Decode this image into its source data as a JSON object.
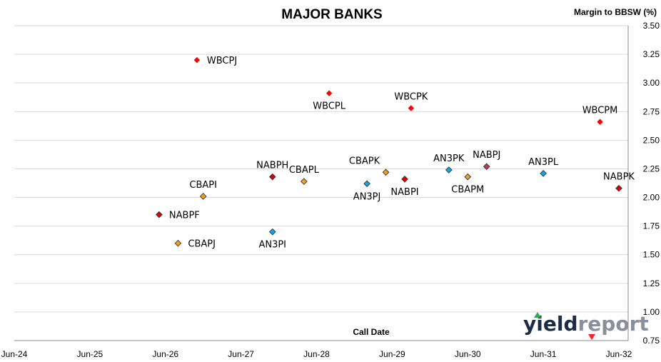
{
  "chart_data": {
    "type": "scatter",
    "title": "MAJOR BANKS",
    "ylabel": "Margin to BBSW (%)",
    "xlabel": "Call Date",
    "ylim": [
      0.75,
      3.5
    ],
    "yticks": [
      "3.50",
      "3.25",
      "3.00",
      "2.75",
      "2.50",
      "2.25",
      "2.00",
      "1.75",
      "1.50",
      "1.25",
      "1.00",
      "0.75"
    ],
    "xticks": [
      "Jun-24",
      "Jun-25",
      "Jun-26",
      "Jun-27",
      "Jun-28",
      "Jun-29",
      "Jun-30",
      "Jun-31",
      "Jun-32"
    ],
    "grid": "horizontal",
    "y_axis_side": "right",
    "points": [
      {
        "label": "WBCPJ",
        "x": "Nov-26",
        "y": 3.2,
        "color": "#ff0000",
        "label_pos": "right"
      },
      {
        "label": "WBCPL",
        "x": "Aug-28",
        "y": 2.91,
        "color": "#ff0000",
        "label_pos": "below"
      },
      {
        "label": "WBCPK",
        "x": "Sep-29",
        "y": 2.78,
        "color": "#ff0000",
        "label_pos": "above"
      },
      {
        "label": "WBCPM",
        "x": "Mar-32",
        "y": 2.66,
        "color": "#ff0000",
        "label_pos": "above"
      },
      {
        "label": "NABPH",
        "x": "Nov-27",
        "y": 2.18,
        "color": "#e00000",
        "label_pos": "above"
      },
      {
        "label": "CBAPL",
        "x": "Apr-28",
        "y": 2.14,
        "color": "#f0a020",
        "label_pos": "above"
      },
      {
        "label": "CBAPI",
        "x": "Dec-26",
        "y": 2.01,
        "color": "#f0a020",
        "label_pos": "above"
      },
      {
        "label": "CBAPK",
        "x": "May-29",
        "y": 2.22,
        "color": "#f0a020",
        "label_pos": "above-left"
      },
      {
        "label": "AN3PJ",
        "x": "Feb-29",
        "y": 2.12,
        "color": "#13a6e8",
        "label_pos": "below"
      },
      {
        "label": "NABPI",
        "x": "Aug-29",
        "y": 2.16,
        "color": "#e00000",
        "label_pos": "below"
      },
      {
        "label": "AN3PK",
        "x": "Mar-30",
        "y": 2.24,
        "color": "#13a6e8",
        "label_pos": "above"
      },
      {
        "label": "CBAPM",
        "x": "Jun-30",
        "y": 2.18,
        "color": "#f0a020",
        "label_pos": "below"
      },
      {
        "label": "NABPJ",
        "x": "Sep-30",
        "y": 2.27,
        "color": "#cc3355",
        "label_pos": "above"
      },
      {
        "label": "AN3PL",
        "x": "Jun-31",
        "y": 2.21,
        "color": "#13a6e8",
        "label_pos": "above"
      },
      {
        "label": "NABPK",
        "x": "Jun-32",
        "y": 2.08,
        "color": "#e00000",
        "label_pos": "above"
      },
      {
        "label": "NABPF",
        "x": "May-26",
        "y": 1.85,
        "color": "#e00000",
        "label_pos": "right"
      },
      {
        "label": "CBAPJ",
        "x": "Aug-26",
        "y": 1.6,
        "color": "#f0a020",
        "label_pos": "right"
      },
      {
        "label": "AN3PI",
        "x": "Nov-27",
        "y": 1.7,
        "color": "#13a6e8",
        "label_pos": "below"
      }
    ]
  },
  "logo": {
    "text_a": "yield",
    "text_b": "report"
  }
}
